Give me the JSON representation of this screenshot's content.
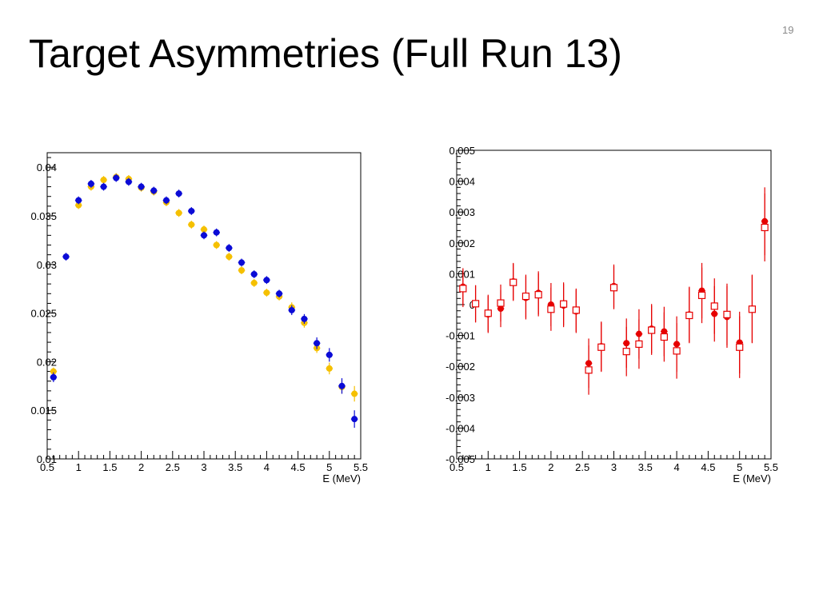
{
  "slide": {
    "title": "Target Asymmetries (Full Run 13)",
    "number": "19"
  },
  "colors": {
    "blue": "#0b0bd6",
    "yellow": "#f5c000",
    "red": "#e60000",
    "frame": "#000000"
  },
  "chart_data": [
    {
      "type": "scatter",
      "title": "",
      "xlabel": "E (MeV)",
      "ylabel": "",
      "xlim": [
        0.5,
        5.5
      ],
      "ylim": [
        0.01,
        0.0415
      ],
      "x_ticks": [
        "0.5",
        "1",
        "1.5",
        "2",
        "2.5",
        "3",
        "3.5",
        "4",
        "4.5",
        "5",
        "5.5"
      ],
      "y_ticks": [
        "0.01",
        "0.015",
        "0.02",
        "0.025",
        "0.03",
        "0.035",
        "0.04"
      ],
      "x_tick_values": [
        0.5,
        1,
        1.5,
        2,
        2.5,
        3,
        3.5,
        4,
        4.5,
        5,
        5.5
      ],
      "y_tick_values": [
        0.01,
        0.015,
        0.02,
        0.025,
        0.03,
        0.035,
        0.04
      ],
      "x_half_width": 0.1,
      "series": [
        {
          "color": "yellow",
          "marker": "filled-circle",
          "points": [
            {
              "x": 0.6,
              "y": 0.019,
              "err": 0.0004
            },
            {
              "x": 1.0,
              "y": 0.0361,
              "err": 0.0004
            },
            {
              "x": 1.2,
              "y": 0.038,
              "err": 0.0004
            },
            {
              "x": 1.4,
              "y": 0.0387,
              "err": 0.0004
            },
            {
              "x": 1.6,
              "y": 0.039,
              "err": 0.0004
            },
            {
              "x": 1.8,
              "y": 0.0388,
              "err": 0.0004
            },
            {
              "x": 2.0,
              "y": 0.0379,
              "err": 0.0004
            },
            {
              "x": 2.2,
              "y": 0.0375,
              "err": 0.0004
            },
            {
              "x": 2.4,
              "y": 0.0364,
              "err": 0.0004
            },
            {
              "x": 2.6,
              "y": 0.0353,
              "err": 0.0004
            },
            {
              "x": 2.8,
              "y": 0.0341,
              "err": 0.0004
            },
            {
              "x": 3.0,
              "y": 0.0336,
              "err": 0.0004
            },
            {
              "x": 3.2,
              "y": 0.032,
              "err": 0.0004
            },
            {
              "x": 3.4,
              "y": 0.0308,
              "err": 0.0004
            },
            {
              "x": 3.6,
              "y": 0.0294,
              "err": 0.0004
            },
            {
              "x": 3.8,
              "y": 0.0281,
              "err": 0.0004
            },
            {
              "x": 4.0,
              "y": 0.0271,
              "err": 0.0004
            },
            {
              "x": 4.2,
              "y": 0.0267,
              "err": 0.0004
            },
            {
              "x": 4.4,
              "y": 0.0256,
              "err": 0.0005
            },
            {
              "x": 4.6,
              "y": 0.024,
              "err": 0.0005
            },
            {
              "x": 4.8,
              "y": 0.0214,
              "err": 0.0005
            },
            {
              "x": 5.0,
              "y": 0.0193,
              "err": 0.0006
            },
            {
              "x": 5.2,
              "y": 0.0174,
              "err": 0.0007
            },
            {
              "x": 5.4,
              "y": 0.0167,
              "err": 0.0008
            }
          ]
        },
        {
          "color": "blue",
          "marker": "filled-circle",
          "points": [
            {
              "x": 0.6,
              "y": 0.0184,
              "err": 0.0005
            },
            {
              "x": 0.8,
              "y": 0.0308,
              "err": 0.0004
            },
            {
              "x": 1.0,
              "y": 0.0366,
              "err": 0.0004
            },
            {
              "x": 1.2,
              "y": 0.0383,
              "err": 0.0004
            },
            {
              "x": 1.4,
              "y": 0.038,
              "err": 0.0004
            },
            {
              "x": 1.6,
              "y": 0.0389,
              "err": 0.0004
            },
            {
              "x": 1.8,
              "y": 0.0385,
              "err": 0.0004
            },
            {
              "x": 2.0,
              "y": 0.038,
              "err": 0.0004
            },
            {
              "x": 2.2,
              "y": 0.0376,
              "err": 0.0004
            },
            {
              "x": 2.4,
              "y": 0.0366,
              "err": 0.0004
            },
            {
              "x": 2.6,
              "y": 0.0373,
              "err": 0.0004
            },
            {
              "x": 2.8,
              "y": 0.0355,
              "err": 0.0004
            },
            {
              "x": 3.0,
              "y": 0.033,
              "err": 0.0004
            },
            {
              "x": 3.2,
              "y": 0.0333,
              "err": 0.0004
            },
            {
              "x": 3.4,
              "y": 0.0317,
              "err": 0.0004
            },
            {
              "x": 3.6,
              "y": 0.0302,
              "err": 0.0004
            },
            {
              "x": 3.8,
              "y": 0.029,
              "err": 0.0004
            },
            {
              "x": 4.0,
              "y": 0.0284,
              "err": 0.0004
            },
            {
              "x": 4.2,
              "y": 0.027,
              "err": 0.0004
            },
            {
              "x": 4.4,
              "y": 0.0253,
              "err": 0.0005
            },
            {
              "x": 4.6,
              "y": 0.0244,
              "err": 0.0005
            },
            {
              "x": 4.8,
              "y": 0.0219,
              "err": 0.0006
            },
            {
              "x": 5.0,
              "y": 0.0207,
              "err": 0.0007
            },
            {
              "x": 5.2,
              "y": 0.0175,
              "err": 0.0008
            },
            {
              "x": 5.4,
              "y": 0.0141,
              "err": 0.0009
            }
          ]
        }
      ]
    },
    {
      "type": "scatter",
      "title": "",
      "xlabel": "E (MeV)",
      "ylabel": "",
      "xlim": [
        0.5,
        5.5
      ],
      "ylim": [
        -0.005,
        0.005
      ],
      "x_ticks": [
        "0.5",
        "1",
        "1.5",
        "2",
        "2.5",
        "3",
        "3.5",
        "4",
        "4.5",
        "5",
        "5.5"
      ],
      "y_ticks": [
        "-0.005",
        "-0.004",
        "-0.003",
        "-0.002",
        "-0.001",
        "0",
        "0.001",
        "0.002",
        "0.003",
        "0.004",
        "0.005"
      ],
      "x_tick_values": [
        0.5,
        1,
        1.5,
        2,
        2.5,
        3,
        3.5,
        4,
        4.5,
        5,
        5.5
      ],
      "y_tick_values": [
        -0.005,
        -0.004,
        -0.003,
        -0.002,
        -0.001,
        0,
        0.001,
        0.002,
        0.003,
        0.004,
        0.005
      ],
      "x_half_width": 0.1,
      "series": [
        {
          "color": "red",
          "marker": "filled-circle",
          "points": [
            {
              "x": 0.6,
              "y": 0.00058,
              "err": 0.0006
            },
            {
              "x": 0.8,
              "y": 2e-05,
              "err": 0.0006
            },
            {
              "x": 1.0,
              "y": -0.00032,
              "err": 0.0006
            },
            {
              "x": 1.2,
              "y": -0.00013,
              "err": 0.0006
            },
            {
              "x": 1.4,
              "y": 0.00075,
              "err": 0.0006
            },
            {
              "x": 1.6,
              "y": 0.00022,
              "err": 0.0007
            },
            {
              "x": 1.8,
              "y": 0.00038,
              "err": 0.0007
            },
            {
              "x": 2.0,
              "y": 0.0,
              "err": 0.0007
            },
            {
              "x": 2.2,
              "y": -3e-05,
              "err": 0.0007
            },
            {
              "x": 2.4,
              "y": -0.00022,
              "err": 0.0007
            },
            {
              "x": 2.6,
              "y": -0.0019,
              "err": 0.0008
            },
            {
              "x": 2.8,
              "y": -0.00135,
              "err": 0.0008
            },
            {
              "x": 3.0,
              "y": 0.0006,
              "err": 0.0007
            },
            {
              "x": 3.2,
              "y": -0.00125,
              "err": 0.0008
            },
            {
              "x": 3.4,
              "y": -0.00095,
              "err": 0.0008
            },
            {
              "x": 3.6,
              "y": -0.00078,
              "err": 0.0008
            },
            {
              "x": 3.8,
              "y": -0.00087,
              "err": 0.0008
            },
            {
              "x": 4.0,
              "y": -0.00128,
              "err": 0.0009
            },
            {
              "x": 4.2,
              "y": -0.00032,
              "err": 0.0009
            },
            {
              "x": 4.4,
              "y": 0.00045,
              "err": 0.0009
            },
            {
              "x": 4.6,
              "y": -0.0003,
              "err": 0.0009
            },
            {
              "x": 4.8,
              "y": -0.0004,
              "err": 0.001
            },
            {
              "x": 5.0,
              "y": -0.00123,
              "err": 0.001
            },
            {
              "x": 5.2,
              "y": -0.00013,
              "err": 0.0011
            },
            {
              "x": 5.4,
              "y": 0.0027,
              "err": 0.0011
            }
          ]
        },
        {
          "color": "red",
          "marker": "open-square",
          "points": [
            {
              "x": 0.6,
              "y": 0.00052,
              "err": 0.0006
            },
            {
              "x": 0.8,
              "y": 3e-05,
              "err": 0.0006
            },
            {
              "x": 1.0,
              "y": -0.00028,
              "err": 0.0006
            },
            {
              "x": 1.2,
              "y": 5e-05,
              "err": 0.0006
            },
            {
              "x": 1.4,
              "y": 0.00072,
              "err": 0.0006
            },
            {
              "x": 1.6,
              "y": 0.00027,
              "err": 0.0007
            },
            {
              "x": 1.8,
              "y": 0.00032,
              "err": 0.0007
            },
            {
              "x": 2.0,
              "y": -0.00015,
              "err": 0.0007
            },
            {
              "x": 2.2,
              "y": 2e-05,
              "err": 0.0007
            },
            {
              "x": 2.4,
              "y": -0.00018,
              "err": 0.0007
            },
            {
              "x": 2.6,
              "y": -0.00212,
              "err": 0.0008
            },
            {
              "x": 2.8,
              "y": -0.00138,
              "err": 0.0008
            },
            {
              "x": 3.0,
              "y": 0.00055,
              "err": 0.0007
            },
            {
              "x": 3.2,
              "y": -0.00152,
              "err": 0.0008
            },
            {
              "x": 3.4,
              "y": -0.00128,
              "err": 0.0008
            },
            {
              "x": 3.6,
              "y": -0.00083,
              "err": 0.0008
            },
            {
              "x": 3.8,
              "y": -0.00105,
              "err": 0.0008
            },
            {
              "x": 4.0,
              "y": -0.0015,
              "err": 0.0009
            },
            {
              "x": 4.2,
              "y": -0.00035,
              "err": 0.0009
            },
            {
              "x": 4.4,
              "y": 0.0003,
              "err": 0.0009
            },
            {
              "x": 4.6,
              "y": -5e-05,
              "err": 0.0009
            },
            {
              "x": 4.8,
              "y": -0.00032,
              "err": 0.001
            },
            {
              "x": 5.0,
              "y": -0.00138,
              "err": 0.001
            },
            {
              "x": 5.2,
              "y": -0.00015,
              "err": 0.0011
            },
            {
              "x": 5.4,
              "y": 0.0025,
              "err": 0.0011
            }
          ]
        }
      ]
    }
  ]
}
